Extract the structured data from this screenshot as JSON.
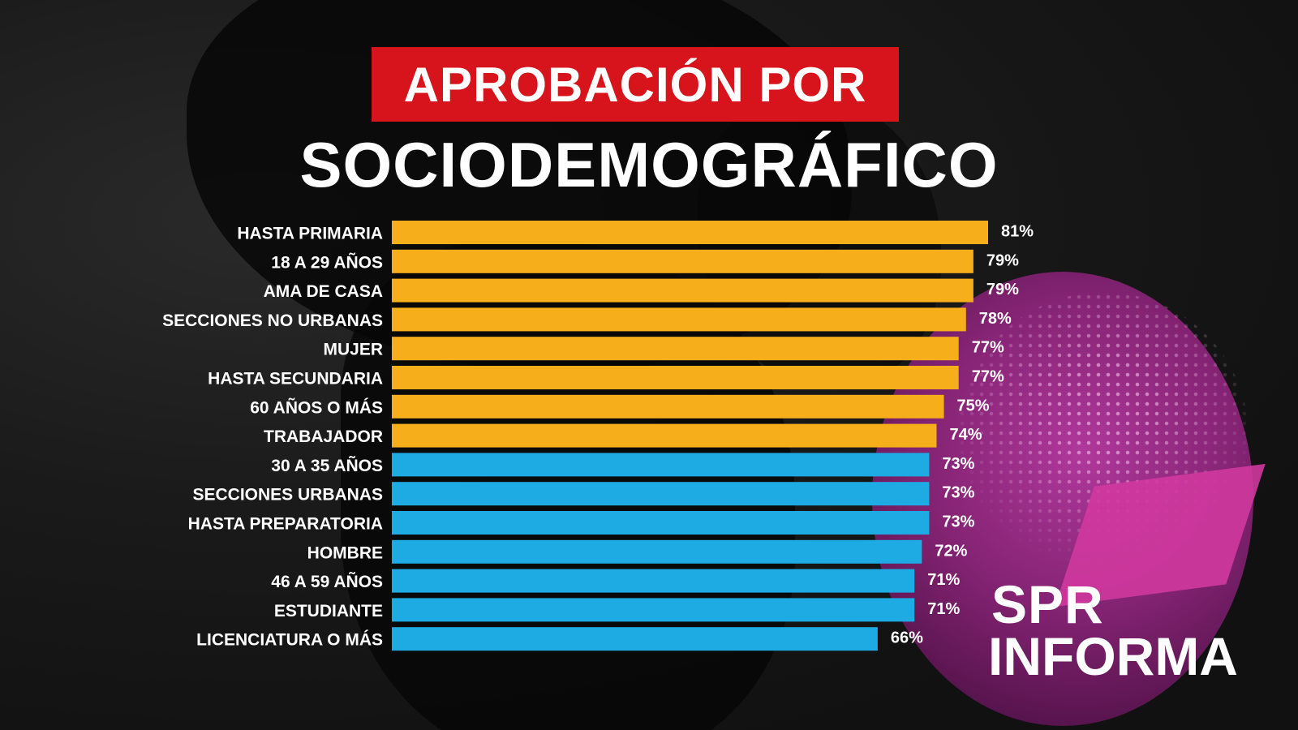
{
  "header": {
    "title": "APROBACIÓN POR",
    "subtitle": "SOCIODEMOGRÁFICO"
  },
  "logo": {
    "line1": "SPR",
    "line2": "INFORMA"
  },
  "colors": {
    "title_bg": "#d7131b",
    "bar_orange": "#f7ae1b",
    "bar_blue": "#1eaae3",
    "text": "#ffffff",
    "accent_magenta": "#b83aa3"
  },
  "chart_data": {
    "type": "bar",
    "orientation": "horizontal",
    "title": "APROBACIÓN POR SOCIODEMOGRÁFICO",
    "categories": [
      "HASTA PRIMARIA",
      "18 A 29 AÑOS",
      "AMA DE CASA",
      "SECCIONES NO URBANAS",
      "MUJER",
      "HASTA SECUNDARIA",
      "60 AÑOS O MÁS",
      "TRABAJADOR",
      "30 A 35 AÑOS",
      "SECCIONES URBANAS",
      "HASTA PREPARATORIA",
      "HOMBRE",
      "46 A 59 AÑOS",
      "ESTUDIANTE",
      "LICENCIATURA O MÁS"
    ],
    "values": [
      81,
      79,
      79,
      78,
      77,
      77,
      75,
      74,
      73,
      73,
      73,
      72,
      71,
      71,
      66
    ],
    "value_labels": [
      "81%",
      "79%",
      "79%",
      "78%",
      "77%",
      "77%",
      "75%",
      "74%",
      "73%",
      "73%",
      "73%",
      "72%",
      "71%",
      "71%",
      "66%"
    ],
    "bar_colors": [
      "orange",
      "orange",
      "orange",
      "orange",
      "orange",
      "orange",
      "orange",
      "orange",
      "blue",
      "blue",
      "blue",
      "blue",
      "blue",
      "blue",
      "blue"
    ],
    "unit": "%",
    "xlim": [
      0,
      81
    ],
    "grid": false,
    "legend": "none"
  }
}
